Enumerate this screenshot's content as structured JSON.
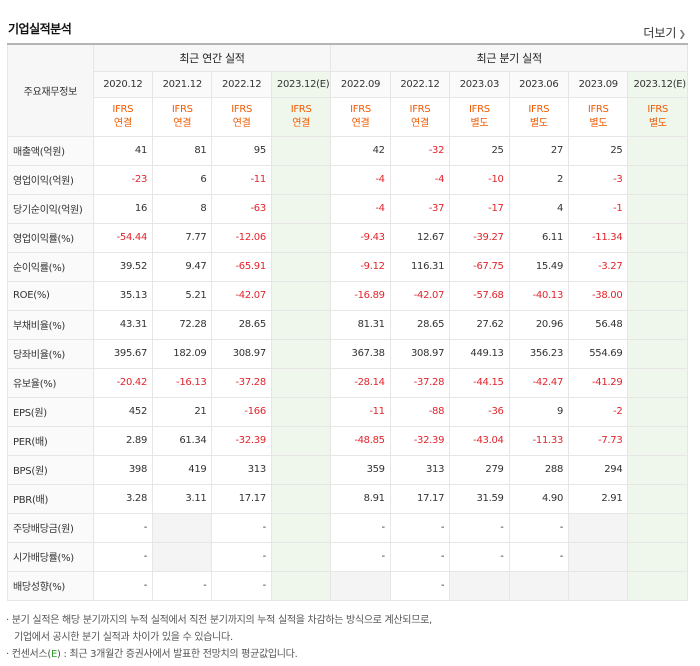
{
  "title": "기업실적분석",
  "more_label": "더보기",
  "corner_label": "주요재무정보",
  "annual_label": "최근 연간 실적",
  "quarter_label": "최근 분기 실적",
  "periods": [
    "2020.12",
    "2021.12",
    "2022.12",
    "2023.12(E)",
    "2022.09",
    "2022.12",
    "2023.03",
    "2023.06",
    "2023.09",
    "2023.12(E)"
  ],
  "ifrs": [
    [
      "IFRS",
      "연결"
    ],
    [
      "IFRS",
      "연결"
    ],
    [
      "IFRS",
      "연결"
    ],
    [
      "IFRS",
      "연결"
    ],
    [
      "IFRS",
      "연결"
    ],
    [
      "IFRS",
      "연결"
    ],
    [
      "IFRS",
      "별도"
    ],
    [
      "IFRS",
      "별도"
    ],
    [
      "IFRS",
      "별도"
    ],
    [
      "IFRS",
      "별도"
    ]
  ],
  "rows": [
    {
      "label": "매출액(억원)",
      "values": [
        "41",
        "81",
        "95",
        "",
        "42",
        "-32",
        "25",
        "27",
        "25",
        ""
      ]
    },
    {
      "label": "영업이익(억원)",
      "values": [
        "-23",
        "6",
        "-11",
        "",
        "-4",
        "-4",
        "-10",
        "2",
        "-3",
        ""
      ]
    },
    {
      "label": "당기순이익(억원)",
      "values": [
        "16",
        "8",
        "-63",
        "",
        "-4",
        "-37",
        "-17",
        "4",
        "-1",
        ""
      ]
    },
    {
      "label": "영업이익률(%)",
      "values": [
        "-54.44",
        "7.77",
        "-12.06",
        "",
        "-9.43",
        "12.67",
        "-39.27",
        "6.11",
        "-11.34",
        ""
      ]
    },
    {
      "label": "순이익률(%)",
      "values": [
        "39.52",
        "9.47",
        "-65.91",
        "",
        "-9.12",
        "116.31",
        "-67.75",
        "15.49",
        "-3.27",
        ""
      ]
    },
    {
      "label": "ROE(%)",
      "values": [
        "35.13",
        "5.21",
        "-42.07",
        "",
        "-16.89",
        "-42.07",
        "-57.68",
        "-40.13",
        "-38.00",
        ""
      ]
    },
    {
      "label": "부채비율(%)",
      "values": [
        "43.31",
        "72.28",
        "28.65",
        "",
        "81.31",
        "28.65",
        "27.62",
        "20.96",
        "56.48",
        ""
      ]
    },
    {
      "label": "당좌비율(%)",
      "values": [
        "395.67",
        "182.09",
        "308.97",
        "",
        "367.38",
        "308.97",
        "449.13",
        "356.23",
        "554.69",
        ""
      ]
    },
    {
      "label": "유보율(%)",
      "values": [
        "-20.42",
        "-16.13",
        "-37.28",
        "",
        "-28.14",
        "-37.28",
        "-44.15",
        "-42.47",
        "-41.29",
        ""
      ]
    },
    {
      "label": "EPS(원)",
      "values": [
        "452",
        "21",
        "-166",
        "",
        "-11",
        "-88",
        "-36",
        "9",
        "-2",
        ""
      ]
    },
    {
      "label": "PER(배)",
      "values": [
        "2.89",
        "61.34",
        "-32.39",
        "",
        "-48.85",
        "-32.39",
        "-43.04",
        "-11.33",
        "-7.73",
        ""
      ]
    },
    {
      "label": "BPS(원)",
      "values": [
        "398",
        "419",
        "313",
        "",
        "359",
        "313",
        "279",
        "288",
        "294",
        ""
      ]
    },
    {
      "label": "PBR(배)",
      "values": [
        "3.28",
        "3.11",
        "17.17",
        "",
        "8.91",
        "17.17",
        "31.59",
        "4.90",
        "2.91",
        ""
      ]
    },
    {
      "label": "주당배당금(원)",
      "values": [
        "-",
        "",
        "-",
        "",
        "-",
        "-",
        "-",
        "-",
        "",
        ""
      ]
    },
    {
      "label": "시가배당률(%)",
      "values": [
        "-",
        "",
        "-",
        "",
        "-",
        "-",
        "-",
        "-",
        "",
        ""
      ]
    },
    {
      "label": "배당성향(%)",
      "values": [
        "-",
        "-",
        "-",
        "",
        "",
        "-",
        "",
        "",
        "",
        ""
      ]
    }
  ],
  "gray_cells": [
    [
      13,
      1
    ],
    [
      14,
      1
    ],
    [
      13,
      8
    ],
    [
      14,
      8
    ],
    [
      15,
      4
    ],
    [
      15,
      6
    ],
    [
      15,
      7
    ],
    [
      15,
      8
    ]
  ],
  "group_starts": [
    3,
    6,
    9,
    13
  ],
  "notes": {
    "line1": "· 분기 실적은 해당 분기까지의 누적 실적에서 직전 분기까지의 누적 실적을 차감하는 방식으로 계산되므로,",
    "line2": "기업에서 공시한 분기 실적과 차이가 있을 수 있습니다.",
    "line3_a": "· 컨센서스(",
    "line3_e": "E",
    "line3_b": ") : 최근 3개월간 증권사에서 발표한 전망치의 평균값입니다."
  }
}
